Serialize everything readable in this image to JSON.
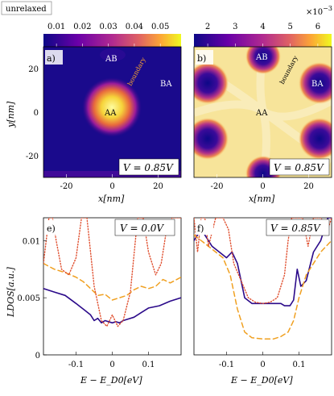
{
  "figure": {
    "tag": "unrelaxed",
    "colorbar_left": {
      "ticks": [
        "0.01",
        "0.02",
        "0.03",
        "0.04",
        "0.05"
      ],
      "values": [
        0.01,
        0.02,
        0.03,
        0.04,
        0.05
      ],
      "range": [
        0.005,
        0.058
      ]
    },
    "colorbar_right": {
      "ticks": [
        "2",
        "3",
        "4",
        "5",
        "6"
      ],
      "values": [
        2,
        3,
        4,
        5,
        6
      ],
      "range": [
        1.5,
        6.5
      ],
      "multiplier_base": "×10",
      "multiplier_exp": "−3"
    },
    "panels": [
      {
        "id": "a",
        "tag": "a)",
        "voltage_label": "V = 0.85V",
        "labels": {
          "aa": "AA",
          "ab": "AB",
          "ba": "BA",
          "boundary": "boundary"
        }
      },
      {
        "id": "b",
        "tag": "b)",
        "voltage_label": "V = 0.85V",
        "labels": {
          "aa": "AA",
          "ab": "AB",
          "ba": "BA",
          "boundary": "boundary"
        }
      },
      {
        "id": "e",
        "tag": "e)",
        "voltage_label": "V = 0.0V"
      },
      {
        "id": "f",
        "tag": "f)",
        "voltage_label": "V = 0.85V"
      }
    ],
    "map_axes": {
      "xlabel": "x[nm]",
      "ylabel": "y[nm]",
      "xticks": [
        "-20",
        "0",
        "20"
      ],
      "xtick_values": [
        -20,
        0,
        20
      ],
      "yticks": [
        "20",
        "0",
        "-20"
      ],
      "ytick_values": [
        20,
        0,
        -20
      ],
      "xlim": [
        -30,
        30
      ],
      "ylim": [
        -30,
        30
      ]
    }
  },
  "chart_data": [
    {
      "type": "heatmap",
      "panel": "a",
      "title": "",
      "xlabel": "x[nm]",
      "ylabel": "y[nm]",
      "xlim": [
        -30,
        30
      ],
      "ylim": [
        -30,
        30
      ],
      "colorbar": {
        "min": 0.005,
        "max": 0.058,
        "ticks": [
          0.01,
          0.02,
          0.03,
          0.04,
          0.05
        ]
      },
      "description_values": {
        "AA_peak": 0.057,
        "background": 0.008
      }
    },
    {
      "type": "heatmap",
      "panel": "b",
      "title": "",
      "xlabel": "x[nm]",
      "ylabel": "y[nm]",
      "xlim": [
        -30,
        30
      ],
      "ylim": [
        -30,
        30
      ],
      "colorbar": {
        "min": 0.0015,
        "max": 0.0065,
        "ticks": [
          0.002,
          0.003,
          0.004,
          0.005,
          0.006
        ]
      },
      "description_values": {
        "AB_BA_peak": 0.0016,
        "background": 0.006
      }
    },
    {
      "type": "line",
      "panel": "e",
      "xlabel": "E − E_D0[eV]",
      "ylabel": "LDOS[a.u.]",
      "xlim": [
        -0.19,
        0.19
      ],
      "ylim": [
        0,
        0.012
      ],
      "xticks": [
        "-0.1",
        "0",
        "0.1"
      ],
      "xtick_values": [
        -0.1,
        0,
        0.1
      ],
      "yticks": [
        "0",
        "0.005",
        "0.01"
      ],
      "ytick_values": [
        0,
        0.005,
        0.01
      ],
      "series": [
        {
          "style": "solid",
          "color": "#2b0a8a",
          "x": [
            -0.19,
            -0.16,
            -0.13,
            -0.1,
            -0.08,
            -0.06,
            -0.05,
            -0.04,
            -0.03,
            -0.02,
            -0.01,
            0,
            0.01,
            0.02,
            0.03,
            0.04,
            0.06,
            0.08,
            0.1,
            0.13,
            0.16,
            0.19
          ],
          "y": [
            0.0058,
            0.0055,
            0.0052,
            0.0045,
            0.004,
            0.0035,
            0.003,
            0.0032,
            0.0028,
            0.003,
            0.0029,
            0.0028,
            0.0029,
            0.0028,
            0.003,
            0.0031,
            0.0033,
            0.0037,
            0.0041,
            0.0043,
            0.0047,
            0.005
          ]
        },
        {
          "style": "dashed",
          "color": "#f0a020",
          "x": [
            -0.19,
            -0.16,
            -0.13,
            -0.1,
            -0.08,
            -0.06,
            -0.04,
            -0.02,
            0,
            0.02,
            0.04,
            0.06,
            0.08,
            0.1,
            0.12,
            0.14,
            0.16,
            0.19
          ],
          "y": [
            0.008,
            0.0075,
            0.0072,
            0.0068,
            0.0064,
            0.0058,
            0.0052,
            0.0053,
            0.0048,
            0.005,
            0.0052,
            0.0057,
            0.006,
            0.0058,
            0.006,
            0.0066,
            0.0063,
            0.0068
          ]
        },
        {
          "style": "dotted",
          "color": "#e05030",
          "x": [
            -0.19,
            -0.175,
            -0.165,
            -0.155,
            -0.14,
            -0.12,
            -0.1,
            -0.085,
            -0.07,
            -0.05,
            -0.03,
            -0.015,
            0,
            0.015,
            0.03,
            0.05,
            0.07,
            0.085,
            0.1,
            0.12,
            0.135,
            0.15,
            0.165,
            0.19
          ],
          "y": [
            0.008,
            0.012,
            0.012,
            0.01,
            0.0075,
            0.007,
            0.0085,
            0.012,
            0.012,
            0.006,
            0.003,
            0.0025,
            0.0035,
            0.0025,
            0.003,
            0.0055,
            0.012,
            0.012,
            0.009,
            0.007,
            0.008,
            0.011,
            0.012,
            0.012
          ]
        }
      ]
    },
    {
      "type": "line",
      "panel": "f",
      "xlabel": "E − E_D0[eV]",
      "ylabel": "",
      "xlim": [
        -0.19,
        0.19
      ],
      "ylim": [
        0,
        0.012
      ],
      "xticks": [
        "-0.1",
        "0",
        "0.1"
      ],
      "xtick_values": [
        -0.1,
        0,
        0.1
      ],
      "series": [
        {
          "style": "solid",
          "color": "#2b0a8a",
          "x": [
            -0.19,
            -0.17,
            -0.14,
            -0.12,
            -0.1,
            -0.085,
            -0.07,
            -0.06,
            -0.05,
            -0.03,
            0,
            0.03,
            0.05,
            0.06,
            0.075,
            0.085,
            0.095,
            0.105,
            0.12,
            0.14,
            0.16,
            0.18,
            0.19
          ],
          "y": [
            0.01,
            0.011,
            0.0095,
            0.009,
            0.0085,
            0.009,
            0.008,
            0.0065,
            0.005,
            0.0045,
            0.0045,
            0.0045,
            0.0045,
            0.0043,
            0.0043,
            0.0048,
            0.0075,
            0.006,
            0.0065,
            0.009,
            0.01,
            0.012,
            0.012
          ]
        },
        {
          "style": "dashed",
          "color": "#f0a020",
          "x": [
            -0.19,
            -0.17,
            -0.15,
            -0.13,
            -0.11,
            -0.09,
            -0.07,
            -0.05,
            -0.03,
            0,
            0.03,
            0.05,
            0.07,
            0.085,
            0.1,
            0.12,
            0.14,
            0.16,
            0.19
          ],
          "y": [
            0.0105,
            0.01,
            0.0095,
            0.009,
            0.0085,
            0.007,
            0.004,
            0.002,
            0.0015,
            0.0014,
            0.0014,
            0.0016,
            0.002,
            0.003,
            0.005,
            0.007,
            0.008,
            0.009,
            0.01
          ]
        },
        {
          "style": "dotted",
          "color": "#e05030",
          "x": [
            -0.19,
            -0.18,
            -0.17,
            -0.16,
            -0.15,
            -0.13,
            -0.11,
            -0.095,
            -0.08,
            -0.06,
            -0.04,
            -0.02,
            0,
            0.02,
            0.04,
            0.06,
            0.07,
            0.08,
            0.095,
            0.11,
            0.125,
            0.14,
            0.16,
            0.18,
            0.19
          ],
          "y": [
            0.012,
            0.009,
            0.012,
            0.012,
            0.0095,
            0.012,
            0.012,
            0.011,
            0.008,
            0.0065,
            0.005,
            0.0046,
            0.0045,
            0.0046,
            0.005,
            0.007,
            0.01,
            0.012,
            0.012,
            0.012,
            0.0095,
            0.012,
            0.012,
            0.011,
            0.012
          ]
        }
      ]
    }
  ]
}
